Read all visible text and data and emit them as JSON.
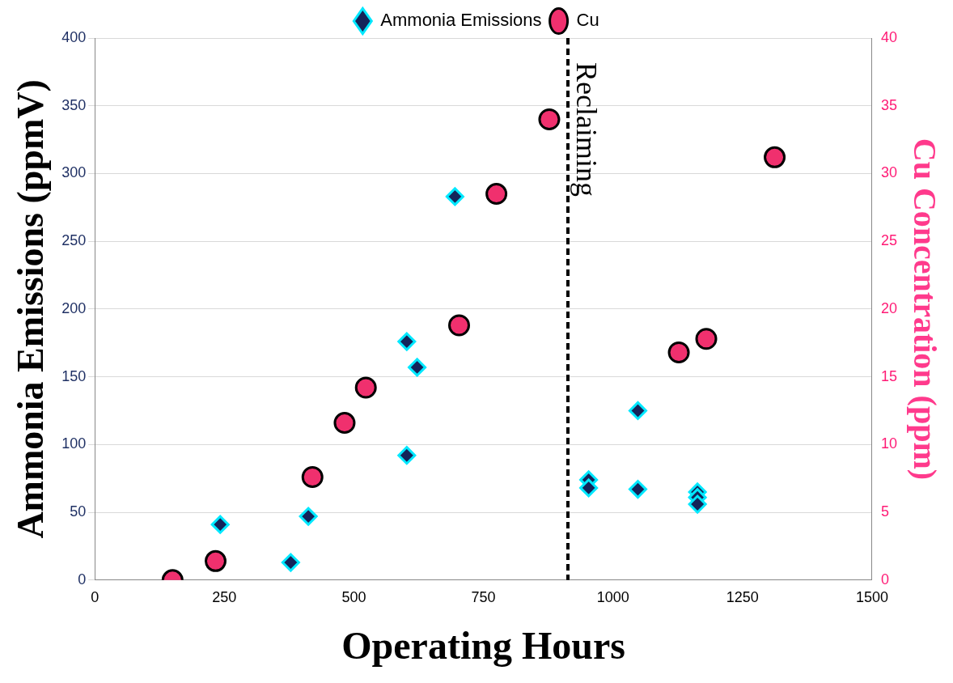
{
  "chart_data": {
    "type": "scatter",
    "xlabel": "Operating Hours",
    "ylabel": "Ammonia Emissions (ppmV)",
    "y2label": "Cu Concentration (ppm)",
    "xlim": [
      0,
      1500
    ],
    "xticks": [
      0,
      250,
      500,
      750,
      1000,
      1250,
      1500
    ],
    "ylim": [
      0,
      400
    ],
    "yticks": [
      0,
      50,
      100,
      150,
      200,
      250,
      300,
      350,
      400
    ],
    "y2lim": [
      0,
      40
    ],
    "y2ticks": [
      0,
      5,
      10,
      15,
      20,
      25,
      30,
      35,
      40
    ],
    "grid": "y",
    "legend": "top",
    "series": [
      {
        "name": "Ammonia Emissions",
        "color": "#14245a",
        "marker": "diamond",
        "x": [
          242,
          378,
          412,
          602,
          622,
          602,
          695,
          953,
          953,
          1048,
          1048,
          1163,
          1163,
          1163
        ],
        "values": [
          41,
          13,
          47,
          176,
          157,
          92,
          283,
          74,
          68,
          125,
          67,
          65,
          61,
          56
        ]
      },
      {
        "name": "Cu",
        "color": "#f0306e",
        "marker": "circle",
        "axis": "y2",
        "x": [
          150,
          233,
          420,
          482,
          523,
          703,
          775,
          877,
          1127,
          1180,
          1312
        ],
        "values": [
          0,
          1.4,
          7.6,
          11.6,
          14.2,
          18.8,
          28.5,
          34.0,
          16.8,
          17.8,
          31.2
        ]
      }
    ],
    "ref_lines": [
      {
        "axis": "x",
        "value": 913,
        "label": "Reclaiming",
        "line_style": "dashed",
        "color": "#000000"
      }
    ]
  }
}
